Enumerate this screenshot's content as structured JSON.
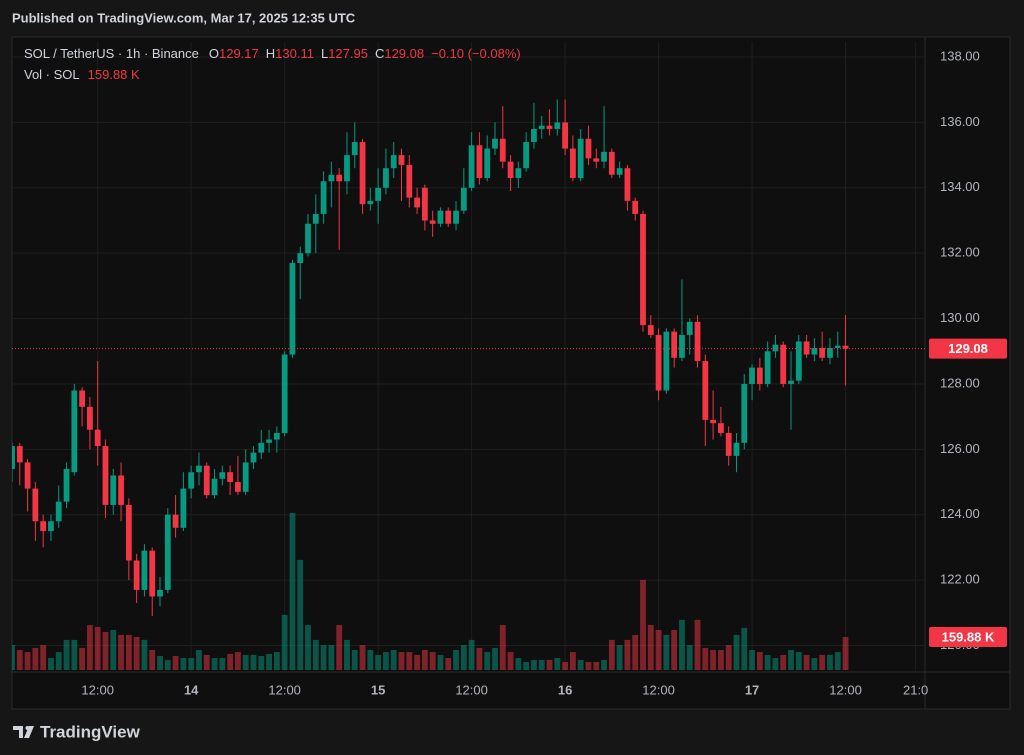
{
  "published": "Published on TradingView.com, Mar 17, 2025 12:35 UTC",
  "footer": "TradingView",
  "chart_data": {
    "type": "candlestick",
    "title": "SOL / TetherUS · 1h · Binance",
    "legend_labels": [
      "O",
      "H",
      "L",
      "C"
    ],
    "change_label": "−0.10 (−0.08%)",
    "volume_title": "Vol · SOL",
    "volume_last_label": "159.88 K",
    "up_color": "#089981",
    "down_color": "#f23645",
    "grid": true,
    "xlim": [
      0,
      117.2
    ],
    "xticks": [
      {
        "value": 11,
        "label": "12:00"
      },
      {
        "value": 23,
        "label": "14"
      },
      {
        "value": 35,
        "label": "12:00"
      },
      {
        "value": 47,
        "label": "15"
      },
      {
        "value": 59,
        "label": "12:00"
      },
      {
        "value": 71,
        "label": "16"
      },
      {
        "value": 83,
        "label": "12:00"
      },
      {
        "value": 95,
        "label": "17"
      },
      {
        "value": 107,
        "label": "12:00"
      },
      {
        "value": 116,
        "label": "21:0"
      }
    ],
    "ylim": [
      119.25,
      138.46
    ],
    "yticks": [
      {
        "value": 120,
        "label": "120.00"
      },
      {
        "value": 122,
        "label": "122.00"
      },
      {
        "value": 124,
        "label": "124.00"
      },
      {
        "value": 126,
        "label": "126.00"
      },
      {
        "value": 128,
        "label": "128.00"
      },
      {
        "value": 130,
        "label": "130.00"
      },
      {
        "value": 132,
        "label": "132.00"
      },
      {
        "value": 134,
        "label": "134.00"
      },
      {
        "value": 136,
        "label": "136.00"
      },
      {
        "value": 138,
        "label": "138.00"
      }
    ],
    "open": [
      125.4,
      126.1,
      125.6,
      124.8,
      123.8,
      123.5,
      123.8,
      124.4,
      125.3,
      127.8,
      127.3,
      126.6,
      126.1,
      124.3,
      125.2,
      124.3,
      122.6,
      121.7,
      122.9,
      121.5,
      121.7,
      124.0,
      123.6,
      124.8,
      125.3,
      125.5,
      124.6,
      125.1,
      125.3,
      125.0,
      124.7,
      125.6,
      125.9,
      126.2,
      126.3,
      126.5,
      128.9,
      131.7,
      132.0,
      132.9,
      133.2,
      134.2,
      134.4,
      134.2,
      135.0,
      135.4,
      133.5,
      133.6,
      134.0,
      134.6,
      135.0,
      134.7,
      133.7,
      134.0,
      133.0,
      132.9,
      133.3,
      132.9,
      133.3,
      134.0,
      135.3,
      134.3,
      135.2,
      135.5,
      134.8,
      134.3,
      134.6,
      135.4,
      135.8,
      135.9,
      135.8,
      136.0,
      135.2,
      134.3,
      135.5,
      134.9,
      134.8,
      135.1,
      134.4,
      134.6,
      133.6,
      133.2,
      129.8,
      129.5,
      127.8,
      129.6,
      128.8,
      129.5,
      129.9,
      128.7,
      126.9,
      126.8,
      126.5,
      125.8,
      126.2,
      128.0,
      128.5,
      128.0,
      129.0,
      129.2,
      128.0,
      128.1,
      129.3,
      128.9,
      129.1,
      128.8,
      129.1,
      129.17
    ],
    "high": [
      126.2,
      126.2,
      125.7,
      125.0,
      124.0,
      124.0,
      124.9,
      125.6,
      128.0,
      127.9,
      127.6,
      128.7,
      126.3,
      125.4,
      125.6,
      124.5,
      122.8,
      123.1,
      123.0,
      122.1,
      124.2,
      124.6,
      125.3,
      125.5,
      125.9,
      125.6,
      125.4,
      125.5,
      125.5,
      125.8,
      126.0,
      126.1,
      126.6,
      126.6,
      126.7,
      129.0,
      131.8,
      132.2,
      133.2,
      133.8,
      134.5,
      134.8,
      134.6,
      135.7,
      136.0,
      135.5,
      134.0,
      134.6,
      135.2,
      135.4,
      135.2,
      135.0,
      134.0,
      134.1,
      133.3,
      133.4,
      133.4,
      133.6,
      134.6,
      135.7,
      135.7,
      135.6,
      136.0,
      136.5,
      135.0,
      134.8,
      135.7,
      136.6,
      136.2,
      136.4,
      136.7,
      136.7,
      135.6,
      135.8,
      135.9,
      135.2,
      136.5,
      135.2,
      134.8,
      134.7,
      133.7,
      133.3,
      130.1,
      129.7,
      129.7,
      129.7,
      131.2,
      130.0,
      130.1,
      128.9,
      127.8,
      127.3,
      126.7,
      126.5,
      128.3,
      128.6,
      128.8,
      129.3,
      129.5,
      129.3,
      129.0,
      129.5,
      129.5,
      129.4,
      129.6,
      129.4,
      129.6,
      130.11
    ],
    "low": [
      125.0,
      124.9,
      124.1,
      123.2,
      123.0,
      123.2,
      123.6,
      124.2,
      125.2,
      126.7,
      126.0,
      125.5,
      123.9,
      124.0,
      123.8,
      122.0,
      121.3,
      121.5,
      120.9,
      121.2,
      121.6,
      123.3,
      123.5,
      124.5,
      124.9,
      124.5,
      124.5,
      124.9,
      124.6,
      124.6,
      124.6,
      125.4,
      125.7,
      125.9,
      125.9,
      126.4,
      128.8,
      130.6,
      131.9,
      132.0,
      132.9,
      133.4,
      132.1,
      133.8,
      134.6,
      133.2,
      133.3,
      132.9,
      133.8,
      134.3,
      133.6,
      133.4,
      133.2,
      132.7,
      132.5,
      132.8,
      132.8,
      132.7,
      133.2,
      133.9,
      134.1,
      134.2,
      135.0,
      134.6,
      133.9,
      134.0,
      134.5,
      135.2,
      135.5,
      135.6,
      135.6,
      135.0,
      134.2,
      134.2,
      134.7,
      134.6,
      134.6,
      134.3,
      134.3,
      133.3,
      133.0,
      129.6,
      129.4,
      127.5,
      127.7,
      128.5,
      128.7,
      128.9,
      128.5,
      126.1,
      126.3,
      126.4,
      125.5,
      125.3,
      126.0,
      127.5,
      127.8,
      127.9,
      128.8,
      127.9,
      126.6,
      128.0,
      128.8,
      128.7,
      128.7,
      128.6,
      128.8,
      127.95
    ],
    "close": [
      126.1,
      125.6,
      124.8,
      123.8,
      123.5,
      123.8,
      124.4,
      125.4,
      127.8,
      127.3,
      126.6,
      126.1,
      124.3,
      125.2,
      124.3,
      122.6,
      121.7,
      122.9,
      121.5,
      121.7,
      124.0,
      123.6,
      124.8,
      125.3,
      125.5,
      124.6,
      125.1,
      125.3,
      125.0,
      124.7,
      125.6,
      125.9,
      126.2,
      126.3,
      126.5,
      128.9,
      131.7,
      132.0,
      132.9,
      133.2,
      134.2,
      134.4,
      134.2,
      135.0,
      135.4,
      133.5,
      133.6,
      134.0,
      134.6,
      135.0,
      134.7,
      133.7,
      133.4,
      133.0,
      132.9,
      133.3,
      132.9,
      133.3,
      134.0,
      135.3,
      134.3,
      135.2,
      135.5,
      134.8,
      134.3,
      134.6,
      135.4,
      135.8,
      135.9,
      135.8,
      136.0,
      135.2,
      134.3,
      135.5,
      134.9,
      134.8,
      135.1,
      134.4,
      134.6,
      133.6,
      133.2,
      129.8,
      129.5,
      127.8,
      129.6,
      128.8,
      129.5,
      129.9,
      128.7,
      126.9,
      126.8,
      126.5,
      125.8,
      126.2,
      128.0,
      128.5,
      128.0,
      129.0,
      129.2,
      128.0,
      128.1,
      129.3,
      128.9,
      129.1,
      128.8,
      129.1,
      129.17,
      129.08
    ],
    "volume": [
      121000,
      97000,
      87000,
      107000,
      121000,
      58000,
      87000,
      146000,
      146000,
      107000,
      218000,
      209000,
      184000,
      194000,
      170000,
      170000,
      160000,
      146000,
      97000,
      68000,
      49000,
      68000,
      58000,
      58000,
      97000,
      73000,
      58000,
      58000,
      78000,
      87000,
      73000,
      73000,
      68000,
      78000,
      87000,
      267000,
      761000,
      534000,
      218000,
      146000,
      121000,
      121000,
      218000,
      146000,
      97000,
      121000,
      97000,
      73000,
      87000,
      97000,
      87000,
      87000,
      73000,
      97000,
      87000,
      73000,
      58000,
      97000,
      121000,
      146000,
      107000,
      87000,
      107000,
      218000,
      87000,
      58000,
      39000,
      49000,
      49000,
      49000,
      58000,
      39000,
      87000,
      49000,
      39000,
      39000,
      49000,
      146000,
      121000,
      146000,
      170000,
      437000,
      218000,
      194000,
      170000,
      194000,
      243000,
      121000,
      243000,
      107000,
      97000,
      97000,
      121000,
      170000,
      204000,
      97000,
      87000,
      73000,
      58000,
      73000,
      97000,
      87000,
      73000,
      58000,
      73000,
      73000,
      87000,
      159880
    ]
  }
}
